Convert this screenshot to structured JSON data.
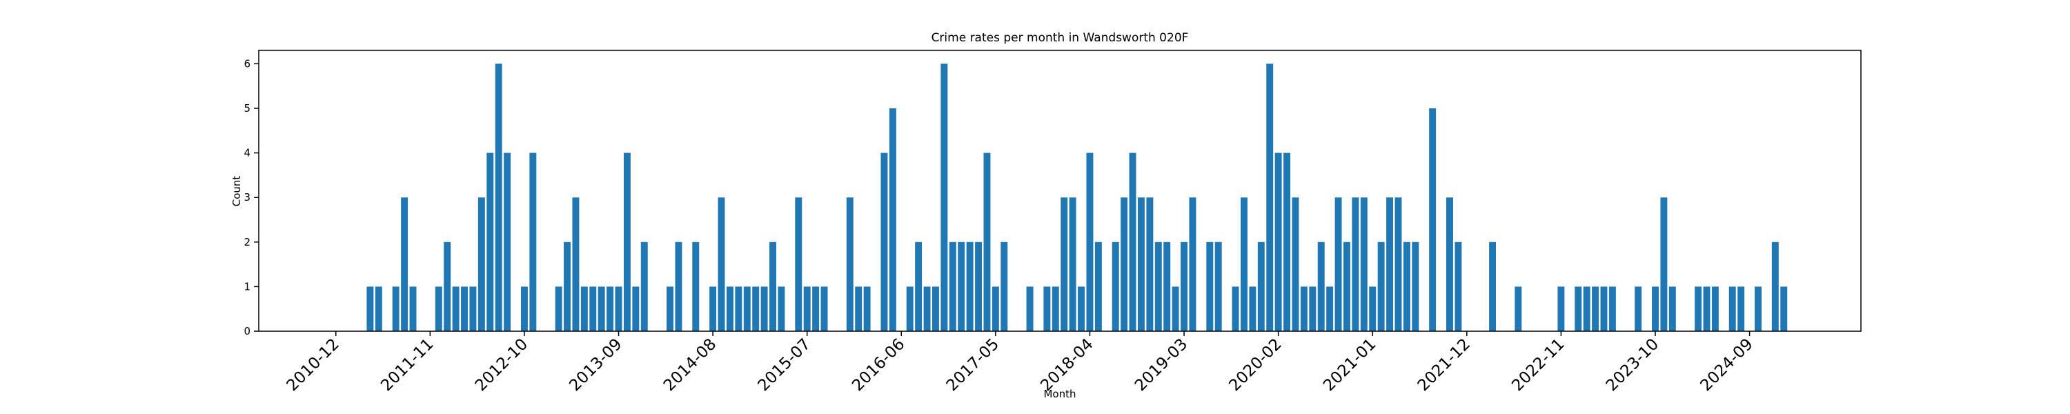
{
  "chart_data": {
    "type": "bar",
    "title": "Crime rates per month in Wandsworth 020F",
    "xlabel": "Month",
    "ylabel": "Count",
    "color": "#1f77b4",
    "x": [
      "2011-04",
      "2011-05",
      "2011-07",
      "2011-08",
      "2011-09",
      "2011-12",
      "2012-01",
      "2012-02",
      "2012-03",
      "2012-04",
      "2012-05",
      "2012-06",
      "2012-07",
      "2012-08",
      "2012-10",
      "2012-11",
      "2013-02",
      "2013-03",
      "2013-04",
      "2013-05",
      "2013-06",
      "2013-07",
      "2013-08",
      "2013-09",
      "2013-10",
      "2013-11",
      "2013-12",
      "2014-03",
      "2014-04",
      "2014-06",
      "2014-08",
      "2014-09",
      "2014-10",
      "2014-11",
      "2014-12",
      "2015-01",
      "2015-02",
      "2015-03",
      "2015-04",
      "2015-06",
      "2015-07",
      "2015-08",
      "2015-09",
      "2015-12",
      "2016-01",
      "2016-02",
      "2016-04",
      "2016-05",
      "2016-07",
      "2016-08",
      "2016-09",
      "2016-10",
      "2016-11",
      "2016-12",
      "2017-01",
      "2017-02",
      "2017-03",
      "2017-04",
      "2017-05",
      "2017-06",
      "2017-09",
      "2017-11",
      "2017-12",
      "2018-01",
      "2018-02",
      "2018-03",
      "2018-04",
      "2018-05",
      "2018-07",
      "2018-08",
      "2018-09",
      "2018-10",
      "2018-11",
      "2018-12",
      "2019-01",
      "2019-02",
      "2019-03",
      "2019-04",
      "2019-06",
      "2019-07",
      "2019-09",
      "2019-10",
      "2019-11",
      "2019-12",
      "2020-01",
      "2020-02",
      "2020-03",
      "2020-04",
      "2020-05",
      "2020-06",
      "2020-07",
      "2020-08",
      "2020-09",
      "2020-10",
      "2020-11",
      "2020-12",
      "2021-01",
      "2021-02",
      "2021-03",
      "2021-04",
      "2021-05",
      "2021-06",
      "2021-08",
      "2021-10",
      "2021-11",
      "2022-03",
      "2022-06",
      "2022-11",
      "2023-01",
      "2023-02",
      "2023-03",
      "2023-04",
      "2023-05",
      "2023-08",
      "2023-10",
      "2023-11",
      "2023-12",
      "2024-03",
      "2024-04",
      "2024-05",
      "2024-07",
      "2024-08",
      "2024-10",
      "2024-12",
      "2025-01"
    ],
    "values": [
      1,
      1,
      1,
      3,
      1,
      1,
      2,
      1,
      1,
      1,
      3,
      4,
      6,
      4,
      1,
      4,
      1,
      2,
      3,
      1,
      1,
      1,
      1,
      1,
      4,
      1,
      2,
      1,
      2,
      2,
      1,
      3,
      1,
      1,
      1,
      1,
      1,
      2,
      1,
      3,
      1,
      1,
      1,
      3,
      1,
      1,
      4,
      5,
      1,
      2,
      1,
      1,
      6,
      2,
      2,
      2,
      2,
      4,
      1,
      2,
      1,
      1,
      1,
      3,
      3,
      1,
      4,
      2,
      2,
      3,
      4,
      3,
      3,
      2,
      2,
      1,
      2,
      3,
      2,
      2,
      1,
      3,
      1,
      2,
      6,
      4,
      4,
      3,
      1,
      1,
      2,
      1,
      3,
      2,
      3,
      3,
      1,
      2,
      3,
      3,
      2,
      2,
      5,
      3,
      2,
      2,
      1,
      1,
      1,
      1,
      1,
      1,
      1,
      1,
      1,
      3,
      1,
      1,
      1,
      1,
      1,
      1,
      1,
      2,
      1
    ],
    "xlim": [
      "2010-03",
      "2025-10"
    ],
    "xticks": [
      "2010-12",
      "2011-11",
      "2012-10",
      "2013-09",
      "2014-08",
      "2015-07",
      "2016-06",
      "2017-05",
      "2018-04",
      "2019-03",
      "2020-02",
      "2021-01",
      "2021-12",
      "2022-11",
      "2023-10",
      "2024-09"
    ],
    "ylim": [
      0,
      6.3
    ],
    "yticks": [
      0,
      1,
      2,
      3,
      4,
      5,
      6
    ],
    "grid": false
  }
}
